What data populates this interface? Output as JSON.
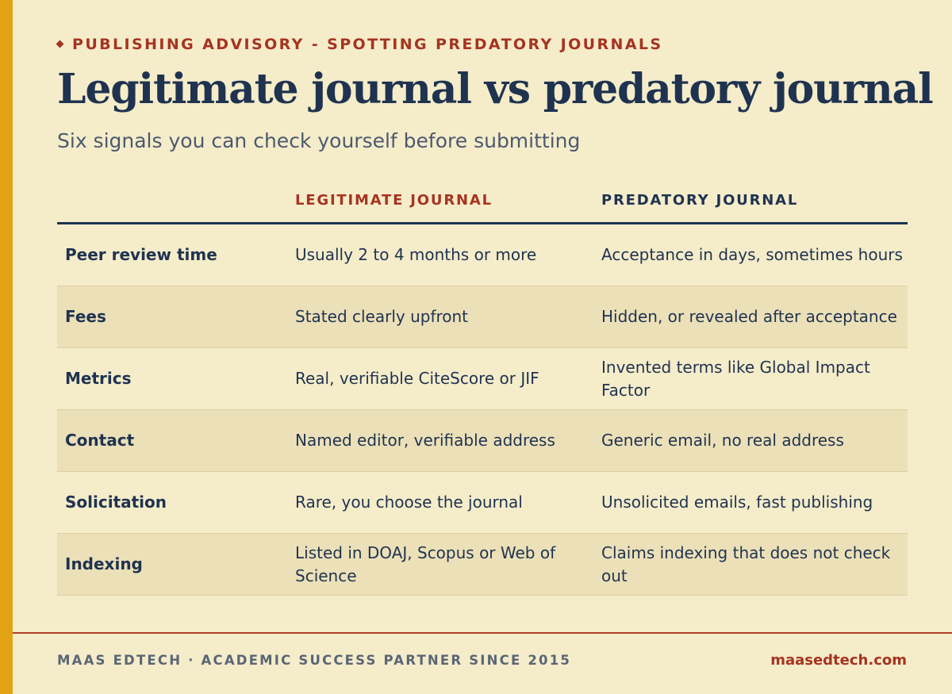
{
  "header": {
    "eyebrow": "PUBLISHING ADVISORY - SPOTTING PREDATORY JOURNALS",
    "title": "Legitimate journal vs predatory journal",
    "subtitle": "Six signals you can check yourself before submitting"
  },
  "table": {
    "columns": {
      "signal": "",
      "legitimate": "LEGITIMATE JOURNAL",
      "predatory": "PREDATORY JOURNAL"
    },
    "rows": [
      {
        "signal": "Peer review time",
        "legitimate": "Usually 2 to 4 months or more",
        "predatory": "Acceptance in days, sometimes hours"
      },
      {
        "signal": "Fees",
        "legitimate": "Stated clearly upfront",
        "predatory": "Hidden, or revealed after acceptance"
      },
      {
        "signal": "Metrics",
        "legitimate": "Real, verifiable CiteScore or JIF",
        "predatory": "Invented terms like Global Impact Factor"
      },
      {
        "signal": "Contact",
        "legitimate": "Named editor, verifiable address",
        "predatory": "Generic email, no real address"
      },
      {
        "signal": "Solicitation",
        "legitimate": "Rare, you choose the journal",
        "predatory": "Unsolicited emails, fast publishing"
      },
      {
        "signal": "Indexing",
        "legitimate": "Listed in DOAJ, Scopus or Web of Science",
        "predatory": "Claims indexing that does not check out"
      }
    ]
  },
  "footer": {
    "tagline": "MAAS EDTECH · ACADEMIC SUCCESS PARTNER SINCE 2015",
    "website": "maasedtech.com"
  },
  "colors": {
    "background": "#f5ecca",
    "accent_bar": "#e3a214",
    "brand_red": "#a53420",
    "navy": "#1f3350",
    "alt_row": "#ece0b8"
  }
}
